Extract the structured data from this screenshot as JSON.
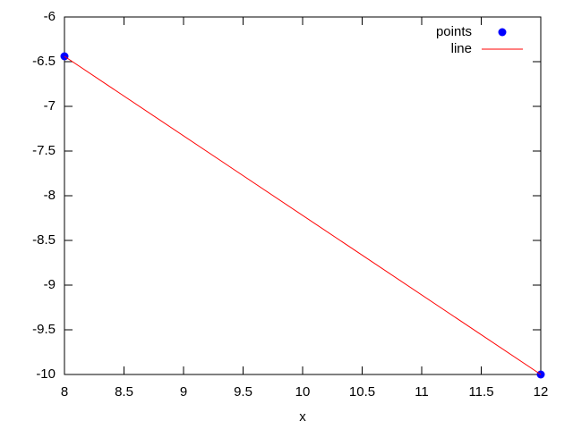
{
  "chart_data": {
    "type": "line",
    "xlabel": "x",
    "xlim": [
      8,
      12
    ],
    "xticks": [
      8,
      8.5,
      9,
      9.5,
      10,
      10.5,
      11,
      11.5,
      12
    ],
    "ylim": [
      -10,
      -6
    ],
    "yticks": [
      -10,
      -9.5,
      -9,
      -8.5,
      -8,
      -7.5,
      -7,
      -6.5,
      -6
    ],
    "grid": false,
    "legend": "top-right",
    "series": [
      {
        "name": "points",
        "color": "#0000ff",
        "mode": "markers",
        "x": [
          8,
          12
        ],
        "values": [
          -6.44,
          -10
        ]
      },
      {
        "name": "line",
        "color": "#ff0000",
        "mode": "lines",
        "x": [
          8,
          12
        ],
        "values": [
          -6.44,
          -10
        ]
      }
    ]
  }
}
